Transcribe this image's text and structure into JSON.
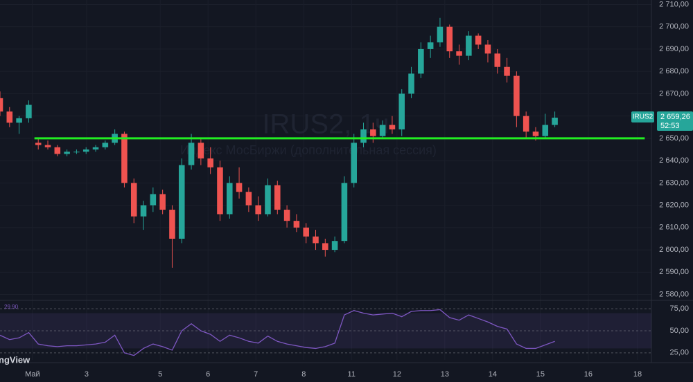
{
  "chart_data": [
    {
      "type": "candlestick",
      "watermark_title": "IRUS2, 1ч",
      "watermark_subtitle": "Индекс МосБиржи (дополнительная сессия)",
      "symbol": "IRUS2",
      "last_price": 2659.26,
      "last_price_label": "2 659,26",
      "countdown": "52:53",
      "brand": "ngView",
      "up_color": "#26a69a",
      "down_color": "#ef5350",
      "x": [
        0,
        2,
        4,
        6,
        8,
        10,
        12,
        14,
        16,
        18,
        20,
        22,
        24,
        26,
        28,
        30,
        32,
        34,
        36,
        38,
        40,
        42,
        44,
        46,
        48,
        50,
        52,
        54,
        56,
        58,
        60,
        62,
        64,
        66,
        68,
        70,
        72,
        74,
        76,
        78,
        80,
        82,
        84,
        86,
        88,
        90,
        92,
        94,
        96,
        98,
        100,
        102,
        104,
        106,
        108,
        110,
        112,
        114,
        116
      ],
      "open": [
        2668,
        2662,
        2657,
        2659,
        2648,
        2647,
        2646,
        2643,
        2644,
        2644,
        2645,
        2646,
        2648,
        2652,
        2630,
        2615,
        2620,
        2625,
        2618,
        2605,
        2638,
        2648,
        2641,
        2637,
        2616,
        2630,
        2626,
        2620,
        2616,
        2629,
        2618,
        2613,
        2610,
        2606,
        2603,
        2600,
        2604,
        2630,
        2648,
        2654,
        2651,
        2656,
        2654,
        2670,
        2679,
        2690,
        2693,
        2700,
        2689,
        2687,
        2696,
        2692,
        2688,
        2682,
        2678,
        2660,
        2653,
        2651,
        2656
      ],
      "high": [
        2671,
        2664,
        2660,
        2667,
        2650,
        2649,
        2647,
        2645,
        2645,
        2646,
        2647,
        2649,
        2654,
        2653,
        2632,
        2622,
        2628,
        2627,
        2620,
        2641,
        2652,
        2650,
        2646,
        2640,
        2633,
        2637,
        2628,
        2624,
        2632,
        2631,
        2620,
        2616,
        2612,
        2609,
        2605,
        2606,
        2633,
        2652,
        2657,
        2657,
        2658,
        2660,
        2672,
        2682,
        2693,
        2696,
        2704,
        2701,
        2692,
        2698,
        2697,
        2694,
        2690,
        2686,
        2680,
        2662,
        2655,
        2661,
        2662
      ],
      "low": [
        2660,
        2655,
        2652,
        2657,
        2645,
        2645,
        2642,
        2642,
        2643,
        2643,
        2644,
        2645,
        2647,
        2628,
        2612,
        2609,
        2617,
        2616,
        2592,
        2603,
        2636,
        2638,
        2634,
        2613,
        2614,
        2623,
        2617,
        2613,
        2615,
        2616,
        2610,
        2608,
        2603,
        2600,
        2597,
        2599,
        2603,
        2628,
        2646,
        2648,
        2650,
        2652,
        2651,
        2668,
        2677,
        2686,
        2691,
        2686,
        2683,
        2685,
        2690,
        2684,
        2679,
        2675,
        2655,
        2650,
        2649,
        2650,
        2655
      ],
      "close": [
        2662,
        2657,
        2659,
        2665,
        2647,
        2646,
        2643,
        2644,
        2644,
        2645,
        2646,
        2648,
        2652,
        2630,
        2615,
        2620,
        2625,
        2618,
        2605,
        2638,
        2648,
        2641,
        2637,
        2616,
        2630,
        2626,
        2620,
        2616,
        2629,
        2618,
        2613,
        2610,
        2606,
        2603,
        2600,
        2604,
        2630,
        2648,
        2654,
        2651,
        2656,
        2654,
        2670,
        2679,
        2690,
        2693,
        2700,
        2689,
        2687,
        2696,
        2692,
        2688,
        2682,
        2678,
        2660,
        2653,
        2651,
        2656,
        2659.26
      ],
      "xlim": [
        0,
        136.2
      ],
      "xticks": [
        {
          "value": 6.8,
          "label": "Май"
        },
        {
          "value": 18.1,
          "label": "3"
        },
        {
          "value": 33.5,
          "label": "5"
        },
        {
          "value": 43.5,
          "label": "6"
        },
        {
          "value": 53.5,
          "label": "7"
        },
        {
          "value": 63.5,
          "label": "8"
        },
        {
          "value": 73.5,
          "label": "11"
        },
        {
          "value": 83,
          "label": "12"
        },
        {
          "value": 93,
          "label": "13"
        },
        {
          "value": 103,
          "label": "14"
        },
        {
          "value": 113,
          "label": "15"
        },
        {
          "value": 123,
          "label": "16"
        },
        {
          "value": 133.3,
          "label": "18"
        }
      ],
      "ylim": [
        2578,
        2712
      ],
      "yticks": [
        {
          "value": 2580,
          "label": "2 580,00"
        },
        {
          "value": 2590,
          "label": "2 590,00"
        },
        {
          "value": 2600,
          "label": "2 600,00"
        },
        {
          "value": 2610,
          "label": "2 610,00"
        },
        {
          "value": 2620,
          "label": "2 620,00"
        },
        {
          "value": 2630,
          "label": "2 630,00"
        },
        {
          "value": 2640,
          "label": "2 640,00"
        },
        {
          "value": 2650,
          "label": "2 650,00"
        },
        {
          "value": 2660,
          "label": "2 660,00"
        },
        {
          "value": 2670,
          "label": "2 670,00"
        },
        {
          "value": 2680,
          "label": "2 680,00"
        },
        {
          "value": 2690,
          "label": "2 690,00"
        },
        {
          "value": 2700,
          "label": "2 700,00"
        },
        {
          "value": 2710,
          "label": "2 710,00"
        }
      ],
      "grid": true,
      "level": {
        "value": 2650,
        "x_start": 7.2,
        "x_end": 134.8,
        "color": "#22ee22"
      }
    },
    {
      "type": "line",
      "name_label": "29,90",
      "color": "#7e57c2",
      "values": [
        45,
        40,
        42,
        48,
        35,
        33,
        32,
        33,
        33,
        34,
        35,
        37,
        45,
        25,
        22,
        30,
        35,
        32,
        28,
        50,
        58,
        50,
        46,
        38,
        45,
        42,
        38,
        36,
        44,
        38,
        35,
        33,
        31,
        30,
        32,
        36,
        68,
        73,
        70,
        68,
        69,
        70,
        66,
        72,
        73,
        73,
        74,
        65,
        62,
        68,
        64,
        60,
        55,
        52,
        35,
        30,
        30,
        34,
        38
      ],
      "ylim": [
        17,
        83
      ],
      "yticks": [
        {
          "value": 75,
          "label": "75,00"
        },
        {
          "value": 50,
          "label": "50,00"
        },
        {
          "value": 25,
          "label": "25,00"
        }
      ],
      "band": [
        30,
        70
      ]
    }
  ]
}
